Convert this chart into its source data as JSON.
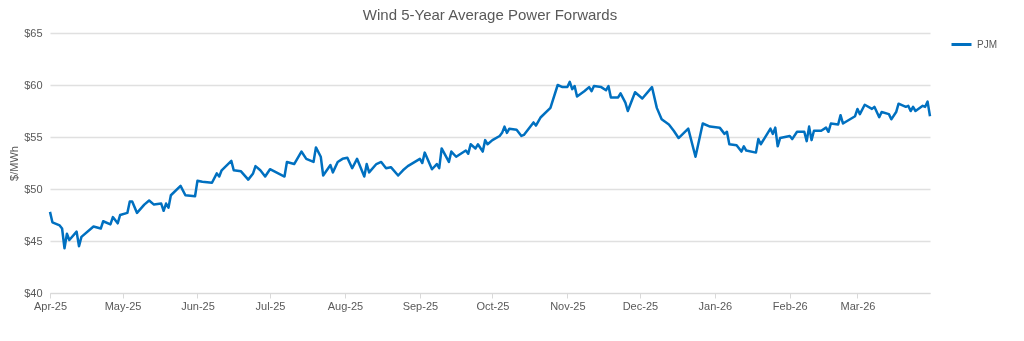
{
  "chart_data": {
    "type": "line",
    "title": "Wind 5-Year Average Power Forwards",
    "ylabel": "$/MWh",
    "x": [
      "2025-04-01",
      "2025-04-02",
      "2025-04-05",
      "2025-04-06",
      "2025-04-07",
      "2025-04-08",
      "2025-04-09",
      "2025-04-12",
      "2025-04-13",
      "2025-04-14",
      "2025-04-19",
      "2025-04-22",
      "2025-04-23",
      "2025-04-26",
      "2025-04-27",
      "2025-04-29",
      "2025-04-30",
      "2025-05-03",
      "2025-05-04",
      "2025-05-05",
      "2025-05-07",
      "2025-05-10",
      "2025-05-12",
      "2025-05-14",
      "2025-05-17",
      "2025-05-18",
      "2025-05-19",
      "2025-05-20",
      "2025-05-21",
      "2025-05-25",
      "2025-05-27",
      "2025-05-31",
      "2025-06-01",
      "2025-06-03",
      "2025-06-07",
      "2025-06-09",
      "2025-06-10",
      "2025-06-11",
      "2025-06-15",
      "2025-06-16",
      "2025-06-19",
      "2025-06-22",
      "2025-06-24",
      "2025-06-25",
      "2025-06-27",
      "2025-06-29",
      "2025-07-01",
      "2025-07-07",
      "2025-07-08",
      "2025-07-11",
      "2025-07-14",
      "2025-07-16",
      "2025-07-19",
      "2025-07-20",
      "2025-07-22",
      "2025-07-23",
      "2025-07-26",
      "2025-07-27",
      "2025-07-29",
      "2025-07-31",
      "2025-08-02",
      "2025-08-04",
      "2025-08-06",
      "2025-08-09",
      "2025-08-10",
      "2025-08-11",
      "2025-08-14",
      "2025-08-16",
      "2025-08-18",
      "2025-08-20",
      "2025-08-23",
      "2025-08-25",
      "2025-08-27",
      "2025-09-01",
      "2025-09-02",
      "2025-09-03",
      "2025-09-06",
      "2025-09-08",
      "2025-09-09",
      "2025-09-10",
      "2025-09-13",
      "2025-09-14",
      "2025-09-16",
      "2025-09-20",
      "2025-09-21",
      "2025-09-22",
      "2025-09-24",
      "2025-09-25",
      "2025-09-27",
      "2025-09-28",
      "2025-09-29",
      "2025-10-01",
      "2025-10-04",
      "2025-10-05",
      "2025-10-06",
      "2025-10-07",
      "2025-10-08",
      "2025-10-11",
      "2025-10-13",
      "2025-10-14",
      "2025-10-16",
      "2025-10-18",
      "2025-10-19",
      "2025-10-21",
      "2025-10-25",
      "2025-10-28",
      "2025-10-30",
      "2025-11-01",
      "2025-11-02",
      "2025-11-03",
      "2025-11-04",
      "2025-11-05",
      "2025-11-08",
      "2025-11-10",
      "2025-11-11",
      "2025-11-12",
      "2025-11-15",
      "2025-11-17",
      "2025-11-18",
      "2025-11-19",
      "2025-11-22",
      "2025-11-23",
      "2025-11-25",
      "2025-11-26",
      "2025-11-29",
      "2025-12-02",
      "2025-12-06",
      "2025-12-08",
      "2025-12-10",
      "2025-12-13",
      "2025-12-15",
      "2025-12-17",
      "2025-12-21",
      "2025-12-24",
      "2025-12-27",
      "2025-12-30",
      "2026-01-03",
      "2026-01-05",
      "2026-01-06",
      "2026-01-07",
      "2026-01-10",
      "2026-01-12",
      "2026-01-13",
      "2026-01-14",
      "2026-01-18",
      "2026-01-19",
      "2026-01-20",
      "2026-01-24",
      "2026-01-25",
      "2026-01-26",
      "2026-01-27",
      "2026-01-28",
      "2026-02-01",
      "2026-02-02",
      "2026-02-04",
      "2026-02-07",
      "2026-02-08",
      "2026-02-09",
      "2026-02-10",
      "2026-02-11",
      "2026-02-14",
      "2026-02-16",
      "2026-02-17",
      "2026-02-18",
      "2026-02-21",
      "2026-02-22",
      "2026-02-23",
      "2026-02-28",
      "2026-03-01",
      "2026-03-02",
      "2026-03-04",
      "2026-03-07",
      "2026-03-08",
      "2026-03-10",
      "2026-03-11",
      "2026-03-14",
      "2026-03-15",
      "2026-03-17",
      "2026-03-18",
      "2026-03-21",
      "2026-03-22",
      "2026-03-23",
      "2026-03-24",
      "2026-03-25",
      "2026-03-28",
      "2026-03-29",
      "2026-03-30",
      "2026-03-31"
    ],
    "series": [
      {
        "name": "PJM",
        "color": "#0070c0",
        "values": [
          47.8,
          46.8,
          46.5,
          46.2,
          44.3,
          45.7,
          45.1,
          45.9,
          44.5,
          45.4,
          46.4,
          46.2,
          46.9,
          46.6,
          47.3,
          46.7,
          47.5,
          47.7,
          48.8,
          48.8,
          47.7,
          48.5,
          48.9,
          48.5,
          48.6,
          47.9,
          48.6,
          48.2,
          49.4,
          50.3,
          49.4,
          49.3,
          50.8,
          50.7,
          50.6,
          51.5,
          51.2,
          51.8,
          52.7,
          51.8,
          51.7,
          50.9,
          51.5,
          52.2,
          51.8,
          51.2,
          51.9,
          51.2,
          52.6,
          52.4,
          53.6,
          52.9,
          52.6,
          54.0,
          53.1,
          51.3,
          52.3,
          51.6,
          52.6,
          52.9,
          53.0,
          52.0,
          52.9,
          51.2,
          52.4,
          51.6,
          52.4,
          52.6,
          52.0,
          52.1,
          51.3,
          51.8,
          52.2,
          52.9,
          52.5,
          53.5,
          51.9,
          52.4,
          52.0,
          53.9,
          52.6,
          53.6,
          53.1,
          53.7,
          53.4,
          54.3,
          53.9,
          54.3,
          53.6,
          54.7,
          54.3,
          54.7,
          55.1,
          55.4,
          56.0,
          55.4,
          55.8,
          55.7,
          55.1,
          55.2,
          55.8,
          56.4,
          56.1,
          56.9,
          57.8,
          60.0,
          59.8,
          59.8,
          60.3,
          59.6,
          59.9,
          58.9,
          59.4,
          59.8,
          59.4,
          59.9,
          59.8,
          59.5,
          59.9,
          58.8,
          58.8,
          59.2,
          58.3,
          57.5,
          59.3,
          58.7,
          59.8,
          57.8,
          56.7,
          56.2,
          55.6,
          54.9,
          55.8,
          53.1,
          56.3,
          56.0,
          55.9,
          55.3,
          55.5,
          54.3,
          54.2,
          53.6,
          54.1,
          53.7,
          53.5,
          54.8,
          54.3,
          55.8,
          55.3,
          55.9,
          54.1,
          54.9,
          55.1,
          54.8,
          55.5,
          55.5,
          54.6,
          56.0,
          54.7,
          55.6,
          55.6,
          55.9,
          55.5,
          56.3,
          56.2,
          57.1,
          56.3,
          57.0,
          57.7,
          57.2,
          58.1,
          57.7,
          57.9,
          56.9,
          57.4,
          57.2,
          56.7,
          57.4,
          58.2,
          57.9,
          58.0,
          57.5,
          57.9,
          57.5,
          58.0,
          57.9,
          58.4,
          57.0
        ]
      }
    ],
    "xlim": [
      "2025-04-01",
      "2026-03-31"
    ],
    "xticks": [
      {
        "value": "2025-04-01",
        "label": "Apr-25"
      },
      {
        "value": "2025-05-01",
        "label": "May-25"
      },
      {
        "value": "2025-06-01",
        "label": "Jun-25"
      },
      {
        "value": "2025-07-01",
        "label": "Jul-25"
      },
      {
        "value": "2025-08-01",
        "label": "Aug-25"
      },
      {
        "value": "2025-09-01",
        "label": "Sep-25"
      },
      {
        "value": "2025-10-01",
        "label": "Oct-25"
      },
      {
        "value": "2025-11-01",
        "label": "Nov-25"
      },
      {
        "value": "2025-12-01",
        "label": "Dec-25"
      },
      {
        "value": "2026-01-01",
        "label": "Jan-26"
      },
      {
        "value": "2026-02-01",
        "label": "Feb-26"
      },
      {
        "value": "2026-03-01",
        "label": "Mar-26"
      }
    ],
    "ylim": [
      40,
      65
    ],
    "yticks": [
      {
        "value": 40,
        "label": "$40"
      },
      {
        "value": 45,
        "label": "$45"
      },
      {
        "value": 50,
        "label": "$50"
      },
      {
        "value": 55,
        "label": "$55"
      },
      {
        "value": 60,
        "label": "$60"
      },
      {
        "value": 65,
        "label": "$65"
      }
    ],
    "grid": "y",
    "legend": "right",
    "marker": "none",
    "line_style": "solid"
  }
}
